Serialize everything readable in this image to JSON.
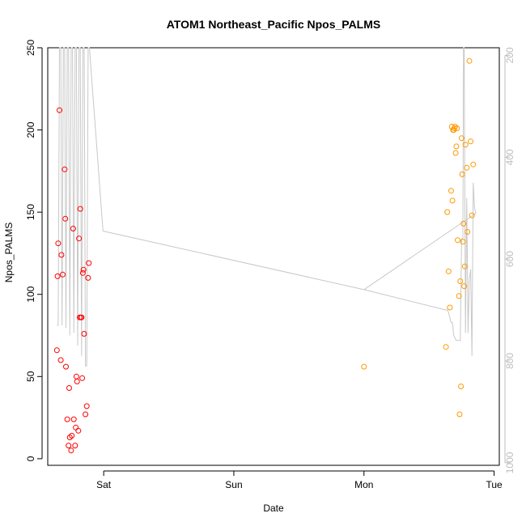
{
  "chart_data": {
    "type": "scatter",
    "title": "ATOM1 Northeast_Pacific Npos_PALMS",
    "xlabel": "Date",
    "ylabel": "Npos_PALMS",
    "x_unit": "days since Saturday 00:00",
    "x_range": [
      -0.43,
      3.04
    ],
    "x_ticks": [
      {
        "value": 0,
        "label": "Sat"
      },
      {
        "value": 1,
        "label": "Sun"
      },
      {
        "value": 2,
        "label": "Mon"
      },
      {
        "value": 3,
        "label": "Tue"
      }
    ],
    "ylim": [
      -4,
      250
    ],
    "y_ticks": [
      0,
      50,
      100,
      150,
      200,
      250
    ],
    "secondary_axis": {
      "side": "right",
      "color": "#bdbdbd",
      "range_top": 185,
      "range_bottom": 1005,
      "ticks": [
        200,
        400,
        600,
        800,
        1000
      ],
      "reversed": true
    },
    "grid": false,
    "legend": "none",
    "series": [
      {
        "color": "#ff0000",
        "marker": "open-circle",
        "points": [
          {
            "x": -0.36,
            "y": 66
          },
          {
            "x": -0.355,
            "y": 111
          },
          {
            "x": -0.35,
            "y": 131
          },
          {
            "x": -0.34,
            "y": 212
          },
          {
            "x": -0.33,
            "y": 60
          },
          {
            "x": -0.325,
            "y": 124
          },
          {
            "x": -0.315,
            "y": 112
          },
          {
            "x": -0.3,
            "y": 176
          },
          {
            "x": -0.295,
            "y": 146
          },
          {
            "x": -0.29,
            "y": 56
          },
          {
            "x": -0.28,
            "y": 24
          },
          {
            "x": -0.27,
            "y": 8
          },
          {
            "x": -0.265,
            "y": 43
          },
          {
            "x": -0.26,
            "y": 13
          },
          {
            "x": -0.25,
            "y": 5
          },
          {
            "x": -0.245,
            "y": 14
          },
          {
            "x": -0.235,
            "y": 140
          },
          {
            "x": -0.23,
            "y": 24
          },
          {
            "x": -0.22,
            "y": 8
          },
          {
            "x": -0.215,
            "y": 19
          },
          {
            "x": -0.21,
            "y": 50
          },
          {
            "x": -0.205,
            "y": 47
          },
          {
            "x": -0.195,
            "y": 17
          },
          {
            "x": -0.19,
            "y": 134
          },
          {
            "x": -0.185,
            "y": 86
          },
          {
            "x": -0.18,
            "y": 152
          },
          {
            "x": -0.175,
            "y": 86
          },
          {
            "x": -0.17,
            "y": 86
          },
          {
            "x": -0.165,
            "y": 49
          },
          {
            "x": -0.16,
            "y": 113
          },
          {
            "x": -0.155,
            "y": 115
          },
          {
            "x": -0.15,
            "y": 76
          },
          {
            "x": -0.14,
            "y": 27
          },
          {
            "x": -0.13,
            "y": 32
          },
          {
            "x": -0.12,
            "y": 110
          },
          {
            "x": -0.115,
            "y": 119
          }
        ]
      },
      {
        "color": "#ff9900",
        "marker": "open-circle",
        "points": [
          {
            "x": 2.0,
            "y": 56
          },
          {
            "x": 2.63,
            "y": 68
          },
          {
            "x": 2.64,
            "y": 150
          },
          {
            "x": 2.65,
            "y": 114
          },
          {
            "x": 2.66,
            "y": 92
          },
          {
            "x": 2.67,
            "y": 163
          },
          {
            "x": 2.675,
            "y": 202
          },
          {
            "x": 2.68,
            "y": 157
          },
          {
            "x": 2.685,
            "y": 200
          },
          {
            "x": 2.69,
            "y": 200
          },
          {
            "x": 2.695,
            "y": 201
          },
          {
            "x": 2.7,
            "y": 202
          },
          {
            "x": 2.705,
            "y": 186
          },
          {
            "x": 2.71,
            "y": 190
          },
          {
            "x": 2.715,
            "y": 201
          },
          {
            "x": 2.72,
            "y": 133
          },
          {
            "x": 2.73,
            "y": 99
          },
          {
            "x": 2.735,
            "y": 27
          },
          {
            "x": 2.74,
            "y": 108
          },
          {
            "x": 2.745,
            "y": 44
          },
          {
            "x": 2.75,
            "y": 195
          },
          {
            "x": 2.755,
            "y": 173
          },
          {
            "x": 2.76,
            "y": 132
          },
          {
            "x": 2.765,
            "y": 143
          },
          {
            "x": 2.77,
            "y": 105
          },
          {
            "x": 2.775,
            "y": 117
          },
          {
            "x": 2.78,
            "y": 191
          },
          {
            "x": 2.79,
            "y": 177
          },
          {
            "x": 2.795,
            "y": 138
          },
          {
            "x": 2.81,
            "y": 242
          },
          {
            "x": 2.82,
            "y": 193
          },
          {
            "x": 2.83,
            "y": 148
          },
          {
            "x": 2.84,
            "y": 179
          }
        ]
      },
      {
        "color": "#c8c8c8",
        "type": "line",
        "axis": "secondary",
        "points": [
          {
            "x": -0.36,
            "y": 730
          },
          {
            "x": -0.35,
            "y": 730
          },
          {
            "x": -0.34,
            "y": 185
          },
          {
            "x": -0.33,
            "y": 185
          },
          {
            "x": -0.32,
            "y": 730
          },
          {
            "x": -0.31,
            "y": 185
          },
          {
            "x": -0.3,
            "y": 185
          },
          {
            "x": -0.29,
            "y": 735
          },
          {
            "x": -0.28,
            "y": 185
          },
          {
            "x": -0.27,
            "y": 185
          },
          {
            "x": -0.26,
            "y": 750
          },
          {
            "x": -0.25,
            "y": 185
          },
          {
            "x": -0.24,
            "y": 185
          },
          {
            "x": -0.23,
            "y": 745
          },
          {
            "x": -0.22,
            "y": 185
          },
          {
            "x": -0.21,
            "y": 185
          },
          {
            "x": -0.2,
            "y": 770
          },
          {
            "x": -0.19,
            "y": 185
          },
          {
            "x": -0.18,
            "y": 185
          },
          {
            "x": -0.17,
            "y": 790
          },
          {
            "x": -0.16,
            "y": 185
          },
          {
            "x": -0.15,
            "y": 185
          },
          {
            "x": -0.14,
            "y": 810
          },
          {
            "x": -0.13,
            "y": 810
          },
          {
            "x": -0.12,
            "y": 185
          },
          {
            "x": -0.11,
            "y": 185
          },
          {
            "x": -0.005,
            "y": 545
          },
          {
            "x": 2.0,
            "y": 660
          },
          {
            "x": 2.63,
            "y": 700
          },
          {
            "x": 2.64,
            "y": 700
          },
          {
            "x": 2.65,
            "y": 705
          },
          {
            "x": 2.66,
            "y": 715
          },
          {
            "x": 2.67,
            "y": 725
          },
          {
            "x": 2.68,
            "y": 725
          },
          {
            "x": 2.69,
            "y": 750
          },
          {
            "x": 2.7,
            "y": 755
          },
          {
            "x": 2.71,
            "y": 760
          },
          {
            "x": 2.72,
            "y": 760
          },
          {
            "x": 2.73,
            "y": 760
          },
          {
            "x": 2.74,
            "y": 760
          },
          {
            "x": 2.75,
            "y": 560
          },
          {
            "x": 2.76,
            "y": 560
          },
          {
            "x": 2.765,
            "y": 185
          },
          {
            "x": 2.77,
            "y": 185
          },
          {
            "x": 2.78,
            "y": 745
          },
          {
            "x": 2.79,
            "y": 480
          },
          {
            "x": 2.8,
            "y": 745
          },
          {
            "x": 2.81,
            "y": 640
          },
          {
            "x": 2.82,
            "y": 620
          },
          {
            "x": 2.83,
            "y": 790
          },
          {
            "x": 2.84,
            "y": 450
          },
          {
            "x": 2.85,
            "y": 500
          },
          {
            "x": 2.86,
            "y": 510
          },
          {
            "x": 2.0,
            "y": 660
          }
        ]
      }
    ]
  }
}
